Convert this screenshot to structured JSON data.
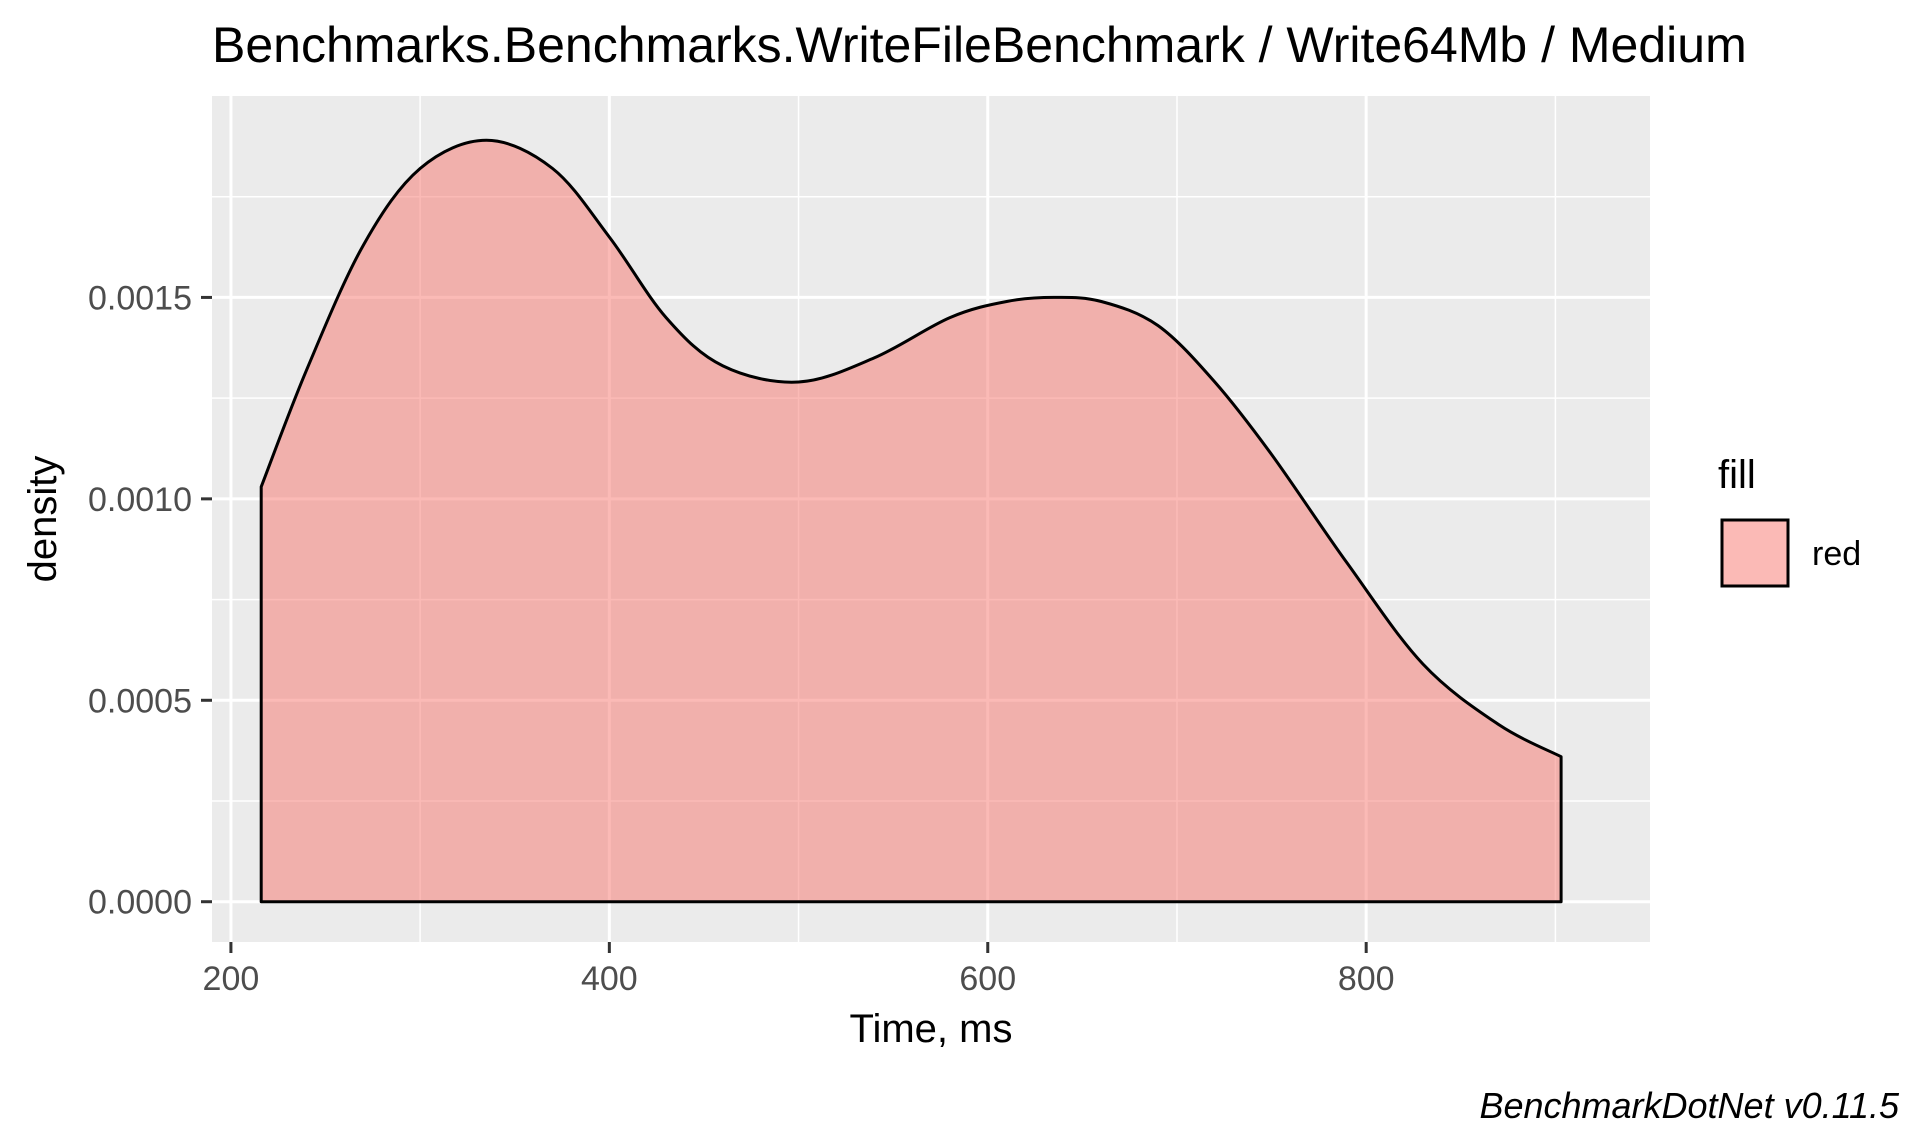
{
  "chart_data": {
    "type": "area",
    "title": "Benchmarks.Benchmarks.WriteFileBenchmark / Write64Mb / Medium",
    "xlabel": "Time, ms",
    "ylabel": "density",
    "caption": "BenchmarkDotNet v0.11.5",
    "xlim": [
      190,
      950
    ],
    "ylim": [
      -0.0001,
      0.002
    ],
    "x_ticks": [
      200,
      400,
      600,
      800
    ],
    "x_tick_labels": [
      "200",
      "400",
      "600",
      "800"
    ],
    "y_ticks": [
      0.0,
      0.0005,
      0.001,
      0.0015
    ],
    "y_tick_labels": [
      "0.0000",
      "0.0005",
      "0.0010",
      "0.0015"
    ],
    "grid": true,
    "legend": {
      "title": "fill",
      "position": "right",
      "entries": [
        {
          "label": "red",
          "color": "#F8766D"
        }
      ]
    },
    "series": [
      {
        "name": "red",
        "fill": "#F8766D",
        "fill_opacity": 0.5,
        "line_color": "#000000",
        "x": [
          216,
          240,
          270,
          300,
          335,
          370,
          400,
          430,
          460,
          500,
          540,
          580,
          610,
          635,
          660,
          690,
          720,
          750,
          790,
          830,
          870,
          903
        ],
        "y": [
          0.00103,
          0.00132,
          0.00163,
          0.00182,
          0.00189,
          0.00182,
          0.00165,
          0.00145,
          0.00133,
          0.00129,
          0.00135,
          0.00145,
          0.00149,
          0.0015,
          0.00149,
          0.00143,
          0.00129,
          0.00111,
          0.00084,
          0.00059,
          0.00044,
          0.00036
        ]
      }
    ]
  }
}
